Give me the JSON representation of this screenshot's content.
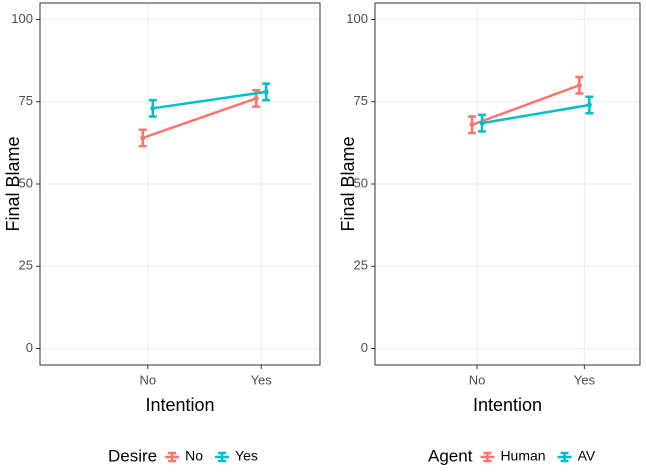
{
  "chart_data": [
    {
      "type": "line",
      "x_label": "Intention",
      "y_label": "Final Blame",
      "legend_title": "Desire",
      "categories": [
        "No",
        "Yes"
      ],
      "ylim": [
        -5,
        105
      ],
      "yticks": [
        0,
        25,
        50,
        75,
        100
      ],
      "grid": true,
      "series": [
        {
          "name": "No",
          "color": "#F8766D",
          "values": [
            64,
            76
          ],
          "errors": [
            2.5,
            2.5
          ]
        },
        {
          "name": "Yes",
          "color": "#00BFC4",
          "values": [
            73,
            78
          ],
          "errors": [
            2.5,
            2.5
          ]
        }
      ]
    },
    {
      "type": "line",
      "x_label": "Intention",
      "y_label": "Final Blame",
      "legend_title": "Agent",
      "categories": [
        "No",
        "Yes"
      ],
      "ylim": [
        -5,
        105
      ],
      "yticks": [
        0,
        25,
        50,
        75,
        100
      ],
      "grid": true,
      "series": [
        {
          "name": "Human",
          "color": "#F8766D",
          "values": [
            68,
            80
          ],
          "errors": [
            2.5,
            2.5
          ]
        },
        {
          "name": "AV",
          "color": "#00BFC4",
          "values": [
            68.5,
            74
          ],
          "errors": [
            2.5,
            2.5
          ]
        }
      ]
    }
  ]
}
